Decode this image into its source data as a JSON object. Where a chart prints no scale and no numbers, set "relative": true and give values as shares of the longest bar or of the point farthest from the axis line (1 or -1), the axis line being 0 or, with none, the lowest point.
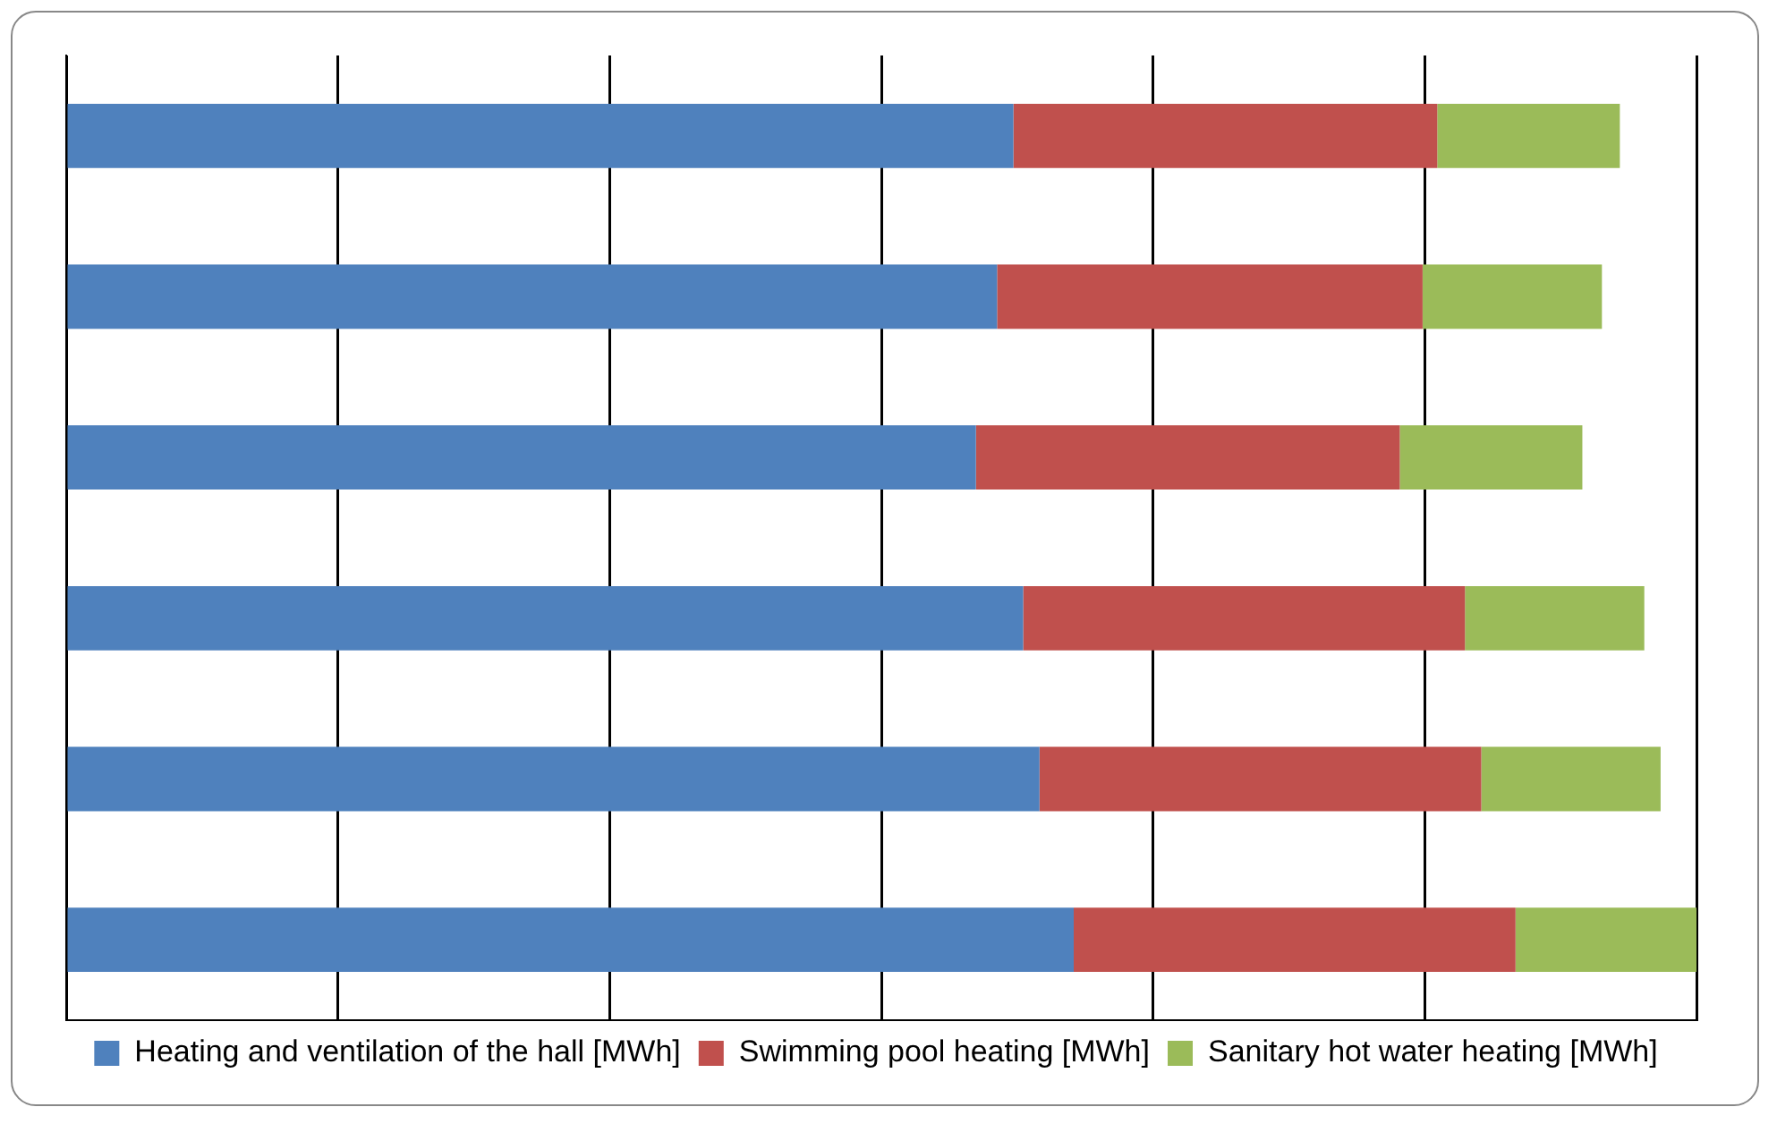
{
  "chart_data": {
    "type": "bar",
    "orientation": "horizontal",
    "stacked": true,
    "relative": true,
    "grid": "x",
    "legend": "bottom",
    "categories": [
      null,
      null,
      null,
      null,
      null,
      null
    ],
    "series": [
      {
        "name": "Heating and ventilation of the hall [MWh]",
        "color": "#4f81bd",
        "values": [
          0.581,
          0.571,
          0.558,
          0.587,
          0.597,
          0.618
        ]
      },
      {
        "name": "Swimming pool heating [MWh]",
        "color": "#c0504d",
        "values": [
          0.26,
          0.261,
          0.26,
          0.271,
          0.271,
          0.271
        ]
      },
      {
        "name": "Sanitary hot water heating [MWh]",
        "color": "#9bbb59",
        "values": [
          0.112,
          0.11,
          0.112,
          0.11,
          0.11,
          0.111
        ]
      }
    ]
  }
}
